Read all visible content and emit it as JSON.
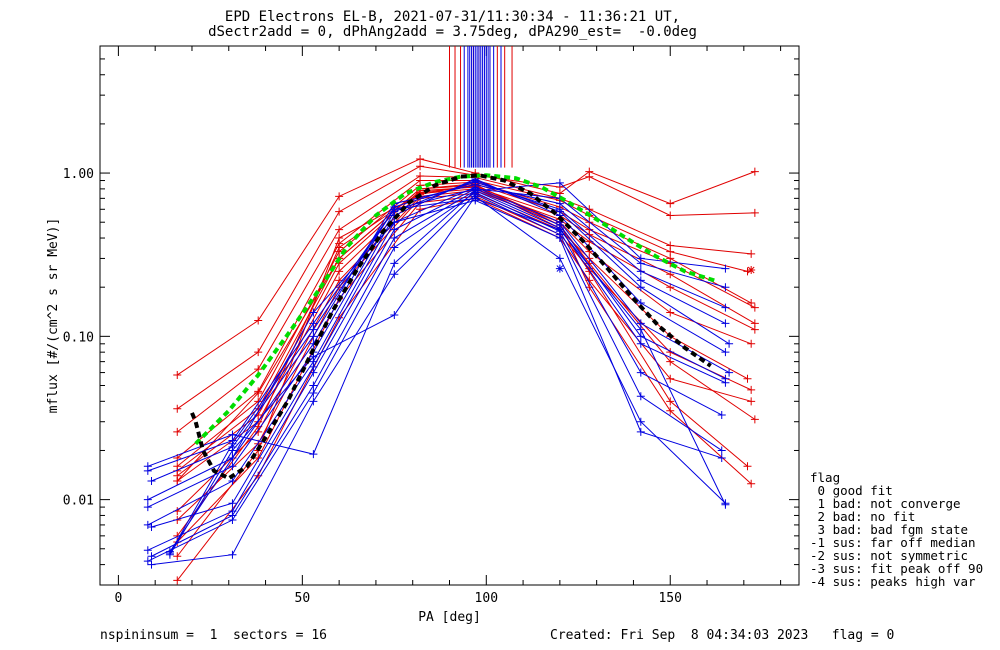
{
  "header": {
    "title_line1": "EPD Electrons EL-B, 2021-07-31/11:30:34 - 11:36:21 UT,",
    "title_line2": "dSectr2add = 0, dPhAng2add = 3.75deg, dPA290_est=  -0.0deg"
  },
  "footer": {
    "left": "nspininsum =  1  sectors = 16",
    "right": "Created: Fri Sep  8 04:34:03 2023   flag = 0"
  },
  "legend": {
    "title": "flag",
    "items": [
      " 0 good fit",
      " 1 bad: not converge",
      " 2 bad: no fit",
      " 3 bad: bad fgm state",
      "-1 sus: far off median",
      "-2 sus: not symmetric",
      "-3 sus: fit peak off 90",
      "-4 sus: peaks high var"
    ]
  },
  "colors": {
    "red": "#e00000",
    "blue": "#0000e0",
    "green": "#00dd00",
    "black": "#000000"
  },
  "chart_data": {
    "type": "line",
    "xlabel": "PA [deg]",
    "ylabel": "mflux [#/(cm^2 s sr MeV)]",
    "xlim": [
      -5,
      185
    ],
    "ylim": [
      0.003,
      6.0
    ],
    "yscale": "log",
    "x_ticks": [
      0,
      50,
      100,
      150
    ],
    "x_tick_labels": [
      "0",
      "50",
      "100",
      "150"
    ],
    "y_ticks": [
      0.01,
      0.1,
      1.0
    ],
    "y_tick_labels": [
      "0.01",
      "0.10",
      "1.00"
    ],
    "grid": false,
    "series": [
      {
        "color": "red",
        "marker": "plus",
        "x": [
          16,
          38,
          60,
          82,
          97,
          120,
          128,
          150,
          173
        ],
        "y": [
          0.058,
          0.125,
          0.72,
          1.22,
          1.0,
          0.75,
          1.02,
          0.65,
          1.02
        ]
      },
      {
        "color": "red",
        "marker": "plus",
        "x": [
          16,
          38,
          60,
          82,
          97,
          120,
          128,
          150,
          173
        ],
        "y": [
          0.036,
          0.08,
          0.58,
          1.1,
          0.97,
          0.82,
          0.95,
          0.55,
          0.57
        ]
      },
      {
        "color": "red",
        "marker": "plus",
        "x": [
          16,
          38,
          60,
          82,
          97,
          120,
          128,
          150,
          172
        ],
        "y": [
          0.026,
          0.063,
          0.45,
          0.96,
          0.94,
          0.7,
          0.6,
          0.36,
          0.32
        ]
      },
      {
        "color": "red",
        "marker": "plus",
        "x": [
          16,
          38,
          60,
          82,
          97,
          120,
          128,
          150,
          171
        ],
        "y": [
          0.018,
          0.046,
          0.37,
          0.9,
          0.9,
          0.68,
          0.55,
          0.33,
          0.25
        ]
      },
      {
        "color": "red",
        "marker": "plus",
        "x": [
          16,
          38,
          60,
          82,
          97,
          120,
          128,
          150,
          172
        ],
        "y": [
          0.016,
          0.04,
          0.33,
          0.84,
          0.88,
          0.62,
          0.5,
          0.3,
          0.16
        ]
      },
      {
        "color": "red",
        "marker": "plus",
        "x": [
          16,
          38,
          60,
          82,
          97,
          120,
          128,
          150,
          173
        ],
        "y": [
          0.015,
          0.036,
          0.3,
          0.8,
          0.86,
          0.58,
          0.45,
          0.28,
          0.15
        ]
      },
      {
        "color": "red",
        "marker": "plus",
        "x": [
          16,
          38,
          60,
          82,
          97,
          120,
          128,
          150,
          173
        ],
        "y": [
          0.014,
          0.033,
          0.28,
          0.78,
          0.82,
          0.55,
          0.42,
          0.24,
          0.12
        ]
      },
      {
        "color": "red",
        "marker": "plus",
        "x": [
          16,
          38,
          60,
          82,
          97,
          120,
          128,
          150,
          173
        ],
        "y": [
          0.013,
          0.03,
          0.25,
          0.75,
          0.8,
          0.52,
          0.38,
          0.2,
          0.11
        ]
      },
      {
        "color": "red",
        "marker": "plus",
        "x": [
          16,
          38,
          60,
          82,
          97,
          120,
          128,
          150,
          172
        ],
        "y": [
          0.0085,
          0.026,
          0.22,
          0.72,
          0.78,
          0.5,
          0.33,
          0.14,
          0.09
        ]
      },
      {
        "color": "red",
        "marker": "plus",
        "x": [
          16,
          38,
          60,
          82,
          97,
          120,
          128,
          150,
          171
        ],
        "y": [
          0.0075,
          0.022,
          0.2,
          0.7,
          0.75,
          0.45,
          0.3,
          0.1,
          0.055
        ]
      },
      {
        "color": "red",
        "marker": "plus",
        "x": [
          16,
          38,
          60,
          82,
          97,
          120,
          128,
          150,
          172
        ],
        "y": [
          0.0055,
          0.018,
          0.17,
          0.66,
          0.72,
          0.42,
          0.26,
          0.08,
          0.047
        ]
      },
      {
        "color": "red",
        "marker": "plus",
        "x": [
          16,
          38,
          60,
          82,
          97,
          120,
          128,
          150,
          172
        ],
        "y": [
          0.0032,
          0.014,
          0.13,
          0.6,
          0.7,
          0.4,
          0.22,
          0.055,
          0.04
        ]
      },
      {
        "color": "red",
        "marker": "plus",
        "x": [
          16,
          38,
          60,
          82,
          97,
          120,
          128,
          150,
          173
        ],
        "y": [
          0.0045,
          0.02,
          0.4,
          0.74,
          0.85,
          0.48,
          0.28,
          0.07,
          0.031
        ]
      },
      {
        "color": "red",
        "marker": "plus",
        "x": [
          16,
          38,
          60,
          82,
          97,
          120,
          128,
          150,
          171
        ],
        "y": [
          0.006,
          0.028,
          0.35,
          0.76,
          0.83,
          0.46,
          0.25,
          0.04,
          0.016
        ]
      },
      {
        "color": "red",
        "marker": "plus",
        "x": [
          16,
          38,
          60,
          82,
          97,
          120,
          128,
          150,
          172
        ],
        "y": [
          0.013,
          0.045,
          0.3,
          0.8,
          0.84,
          0.5,
          0.2,
          0.035,
          0.0125
        ]
      },
      {
        "color": "red",
        "marker": "asterisk",
        "x": [
          172
        ],
        "y": [
          0.255
        ]
      },
      {
        "color": "blue",
        "marker": "plus",
        "x": [
          8,
          31,
          53,
          75,
          97,
          120,
          142,
          165
        ],
        "y": [
          0.016,
          0.025,
          0.019,
          0.28,
          0.78,
          0.87,
          0.3,
          0.26
        ]
      },
      {
        "color": "blue",
        "marker": "plus",
        "x": [
          8,
          31,
          53,
          75,
          97,
          120,
          142,
          165
        ],
        "y": [
          0.015,
          0.023,
          0.12,
          0.6,
          0.8,
          0.7,
          0.28,
          0.2
        ]
      },
      {
        "color": "blue",
        "marker": "plus",
        "x": [
          9,
          31,
          53,
          75,
          97,
          120,
          142,
          165
        ],
        "y": [
          0.013,
          0.021,
          0.1,
          0.65,
          0.85,
          0.65,
          0.25,
          0.15
        ]
      },
      {
        "color": "blue",
        "marker": "plus",
        "x": [
          8,
          31,
          53,
          75,
          97,
          120,
          142,
          165
        ],
        "y": [
          0.01,
          0.018,
          0.09,
          0.62,
          0.88,
          0.6,
          0.22,
          0.12
        ]
      },
      {
        "color": "blue",
        "marker": "plus",
        "x": [
          8,
          31,
          53,
          75,
          97,
          120,
          142,
          166
        ],
        "y": [
          0.009,
          0.016,
          0.08,
          0.58,
          0.9,
          0.58,
          0.2,
          0.09
        ]
      },
      {
        "color": "blue",
        "marker": "plus",
        "x": [
          8,
          31,
          53,
          75,
          97,
          120,
          142,
          165
        ],
        "y": [
          0.007,
          0.013,
          0.07,
          0.55,
          0.92,
          0.55,
          0.16,
          0.08
        ]
      },
      {
        "color": "blue",
        "marker": "plus",
        "x": [
          9,
          31,
          53,
          75,
          97,
          120,
          142,
          166
        ],
        "y": [
          0.0068,
          0.0095,
          0.065,
          0.5,
          0.82,
          0.5,
          0.12,
          0.06
        ]
      },
      {
        "color": "blue",
        "marker": "plus",
        "x": [
          8,
          31,
          53,
          75,
          97,
          120,
          142,
          165
        ],
        "y": [
          0.0049,
          0.0085,
          0.06,
          0.45,
          0.8,
          0.48,
          0.1,
          0.055
        ]
      },
      {
        "color": "blue",
        "marker": "plus",
        "x": [
          9,
          31,
          53,
          75,
          97,
          120,
          142,
          165
        ],
        "y": [
          0.0045,
          0.008,
          0.05,
          0.4,
          0.78,
          0.46,
          0.09,
          0.052
        ]
      },
      {
        "color": "blue",
        "marker": "plus",
        "x": [
          8,
          31,
          53,
          75,
          97,
          120,
          142,
          164
        ],
        "y": [
          0.0042,
          0.0075,
          0.045,
          0.35,
          0.76,
          0.44,
          0.06,
          0.033
        ]
      },
      {
        "color": "blue",
        "marker": "plus",
        "x": [
          9,
          31,
          53,
          75,
          97,
          120,
          142,
          164
        ],
        "y": [
          0.004,
          0.0046,
          0.04,
          0.24,
          0.74,
          0.42,
          0.043,
          0.02
        ]
      },
      {
        "color": "blue",
        "marker": "plus",
        "x": [
          14,
          31,
          53,
          75,
          97,
          120,
          142,
          164
        ],
        "y": [
          0.0048,
          0.018,
          0.14,
          0.5,
          0.68,
          0.4,
          0.026,
          0.018
        ]
      },
      {
        "color": "blue",
        "marker": "plus",
        "x": [
          14,
          31,
          53,
          75,
          97,
          120,
          142,
          165
        ],
        "y": [
          0.0046,
          0.02,
          0.075,
          0.135,
          0.72,
          0.3,
          0.03,
          0.0095
        ]
      },
      {
        "color": "blue",
        "marker": "plus",
        "x": [
          14,
          31,
          53,
          75,
          97,
          120,
          142,
          165
        ],
        "y": [
          0.0047,
          0.022,
          0.11,
          0.6,
          0.7,
          0.45,
          0.11,
          0.0093
        ]
      },
      {
        "color": "blue",
        "marker": "asterisk",
        "x": [
          120
        ],
        "y": [
          0.26
        ]
      },
      {
        "color": "green",
        "style": "dashed",
        "x": [
          21,
          25,
          30,
          38,
          47,
          55,
          62,
          70,
          78,
          86,
          93,
          100,
          108,
          115,
          122,
          130,
          138,
          146,
          154,
          162
        ],
        "y": [
          0.022,
          0.027,
          0.035,
          0.058,
          0.11,
          0.2,
          0.35,
          0.55,
          0.75,
          0.88,
          0.95,
          0.97,
          0.93,
          0.82,
          0.67,
          0.52,
          0.4,
          0.31,
          0.25,
          0.22
        ]
      },
      {
        "color": "black",
        "style": "dashed",
        "x": [
          20,
          21,
          23,
          26,
          30,
          35,
          40,
          46,
          52,
          58,
          65,
          72,
          79,
          86,
          93,
          98,
          105,
          112,
          119,
          126,
          133,
          140,
          147,
          154,
          161
        ],
        "y": [
          0.034,
          0.03,
          0.02,
          0.015,
          0.0135,
          0.016,
          0.024,
          0.04,
          0.075,
          0.14,
          0.26,
          0.44,
          0.66,
          0.84,
          0.95,
          0.97,
          0.9,
          0.75,
          0.56,
          0.39,
          0.26,
          0.17,
          0.115,
          0.085,
          0.066
        ]
      }
    ],
    "vertical_lines": {
      "red_x": [
        90,
        91.5,
        93,
        96.5,
        98,
        101,
        103,
        105,
        107
      ],
      "blue_x": [
        94,
        95,
        95.5,
        96,
        96.5,
        97,
        97.5,
        98,
        98.5,
        99,
        99.5,
        100,
        100.5,
        101,
        102,
        104
      ],
      "y_bottom": 1.08,
      "y_top": 6.0
    }
  }
}
